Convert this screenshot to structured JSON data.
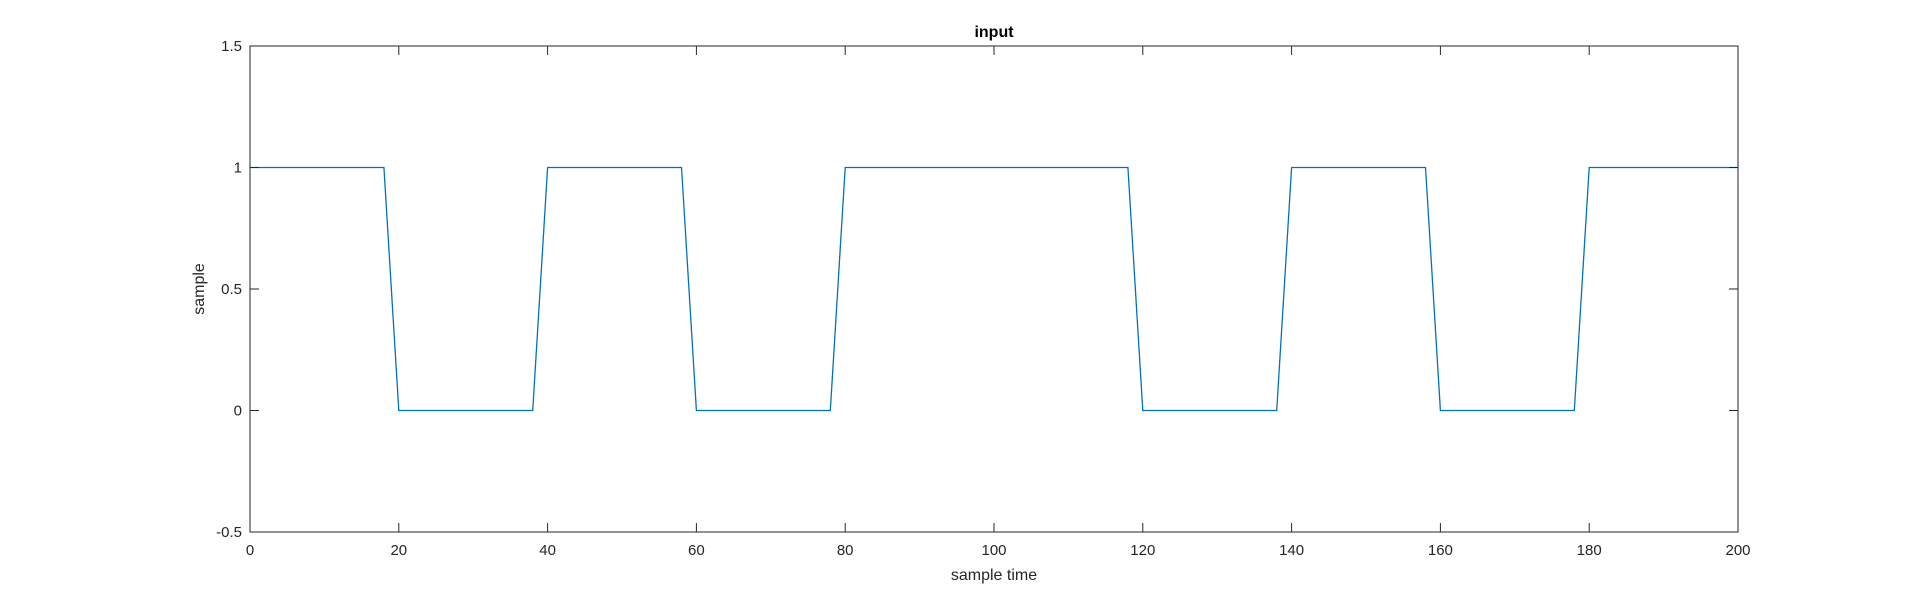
{
  "chart_data": {
    "type": "line",
    "title": "input",
    "xlabel": "sample time",
    "ylabel": "sample",
    "xlim": [
      0,
      200
    ],
    "ylim": [
      -0.5,
      1.5
    ],
    "xticks": [
      0,
      20,
      40,
      60,
      80,
      100,
      120,
      140,
      160,
      180,
      200
    ],
    "yticks": [
      -0.5,
      0,
      0.5,
      1,
      1.5
    ],
    "xtick_labels": [
      "0",
      "20",
      "40",
      "60",
      "80",
      "100",
      "120",
      "140",
      "160",
      "180",
      "200"
    ],
    "ytick_labels": [
      "-0.5",
      "0",
      "0.5",
      "1",
      "1.5"
    ],
    "grid": false,
    "legend": "none",
    "line_color": "#0072BD",
    "series": [
      {
        "x": [
          0,
          18,
          20,
          38,
          40,
          58,
          60,
          78,
          80,
          118,
          120,
          138,
          140,
          158,
          160,
          178,
          180,
          200
        ],
        "y": [
          1,
          1,
          0,
          0,
          1,
          1,
          0,
          0,
          1,
          1,
          0,
          0,
          1,
          1,
          0,
          0,
          1,
          1
        ]
      }
    ]
  }
}
